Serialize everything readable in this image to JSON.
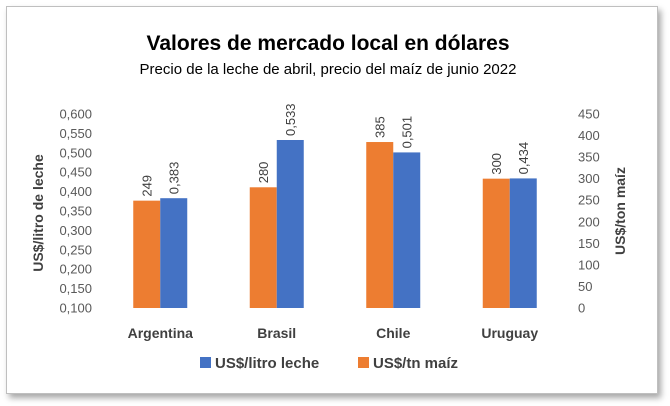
{
  "chart_data": {
    "type": "bar",
    "title": "Valores de mercado local en dólares",
    "subtitle": "Precio de la leche de abril, precio del maíz de junio 2022",
    "categories": [
      "Argentina",
      "Brasil",
      "Chile",
      "Uruguay"
    ],
    "series": [
      {
        "name": "US$/litro leche",
        "axis": "left",
        "color": "#4472C4",
        "values": [
          0.383,
          0.533,
          0.501,
          0.434
        ],
        "labels": [
          "0,383",
          "0,533",
          "0,501",
          "0,434"
        ]
      },
      {
        "name": "US$/tn maíz",
        "axis": "right",
        "color": "#ED7D31",
        "values": [
          249,
          280,
          385,
          300
        ],
        "labels": [
          "249",
          "280",
          "385",
          "300"
        ]
      }
    ],
    "y_left": {
      "label": "US$/litro de leche",
      "min": 0.1,
      "max": 0.6,
      "ticks": [
        "0,100",
        "0,150",
        "0,200",
        "0,250",
        "0,300",
        "0,350",
        "0,400",
        "0,450",
        "0,500",
        "0,550",
        "0,600"
      ]
    },
    "y_right": {
      "label": "US$/ton maíz",
      "min": 0,
      "max": 450,
      "ticks": [
        "0",
        "50",
        "100",
        "150",
        "200",
        "250",
        "300",
        "350",
        "400",
        "450"
      ]
    },
    "grid": false,
    "legend_position": "bottom"
  }
}
